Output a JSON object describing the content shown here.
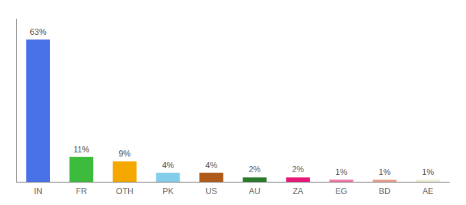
{
  "chart_data": {
    "type": "bar",
    "categories": [
      "IN",
      "FR",
      "OTH",
      "PK",
      "US",
      "AU",
      "ZA",
      "EG",
      "BD",
      "AE"
    ],
    "values": [
      63,
      11,
      9,
      4,
      4,
      2,
      2,
      1,
      1,
      1
    ],
    "value_labels": [
      "63%",
      "11%",
      "9%",
      "4%",
      "4%",
      "2%",
      "2%",
      "1%",
      "1%",
      "1%"
    ],
    "colors": [
      "#4a72e8",
      "#3dbb3d",
      "#f5a800",
      "#85ceeb",
      "#b05a1a",
      "#2a7a2a",
      "#e8187a",
      "#f07aaa",
      "#e8a090",
      "#f0f0d8"
    ],
    "ylim": [
      0,
      72
    ],
    "data_labels": true,
    "tick_labels": "x",
    "grid": false
  }
}
